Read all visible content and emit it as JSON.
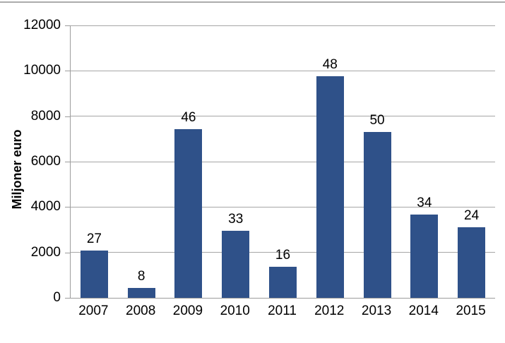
{
  "page": {
    "background_color": "#ffffff",
    "top_divider_color": "#ababab"
  },
  "chart_data": {
    "type": "bar",
    "title": "",
    "xlabel": "",
    "ylabel": "Miljoner euro",
    "categories": [
      "2007",
      "2008",
      "2009",
      "2010",
      "2011",
      "2012",
      "2013",
      "2014",
      "2015"
    ],
    "values": [
      2080,
      430,
      7420,
      2950,
      1370,
      9770,
      7310,
      3670,
      3110
    ],
    "bar_labels": [
      "27",
      "8",
      "46",
      "33",
      "16",
      "48",
      "50",
      "34",
      "24"
    ],
    "ylim": [
      0,
      12000
    ],
    "ytick_step": 2000,
    "ytick_labels": [
      "0",
      "2000",
      "4000",
      "6000",
      "8000",
      "10000",
      "12000"
    ],
    "grid": true,
    "legend_position": "none",
    "bar_color": "#2f5189",
    "gridline_color": "#a6a6a6",
    "axis_color": "#9c9c9c",
    "text_color": "#000000"
  }
}
